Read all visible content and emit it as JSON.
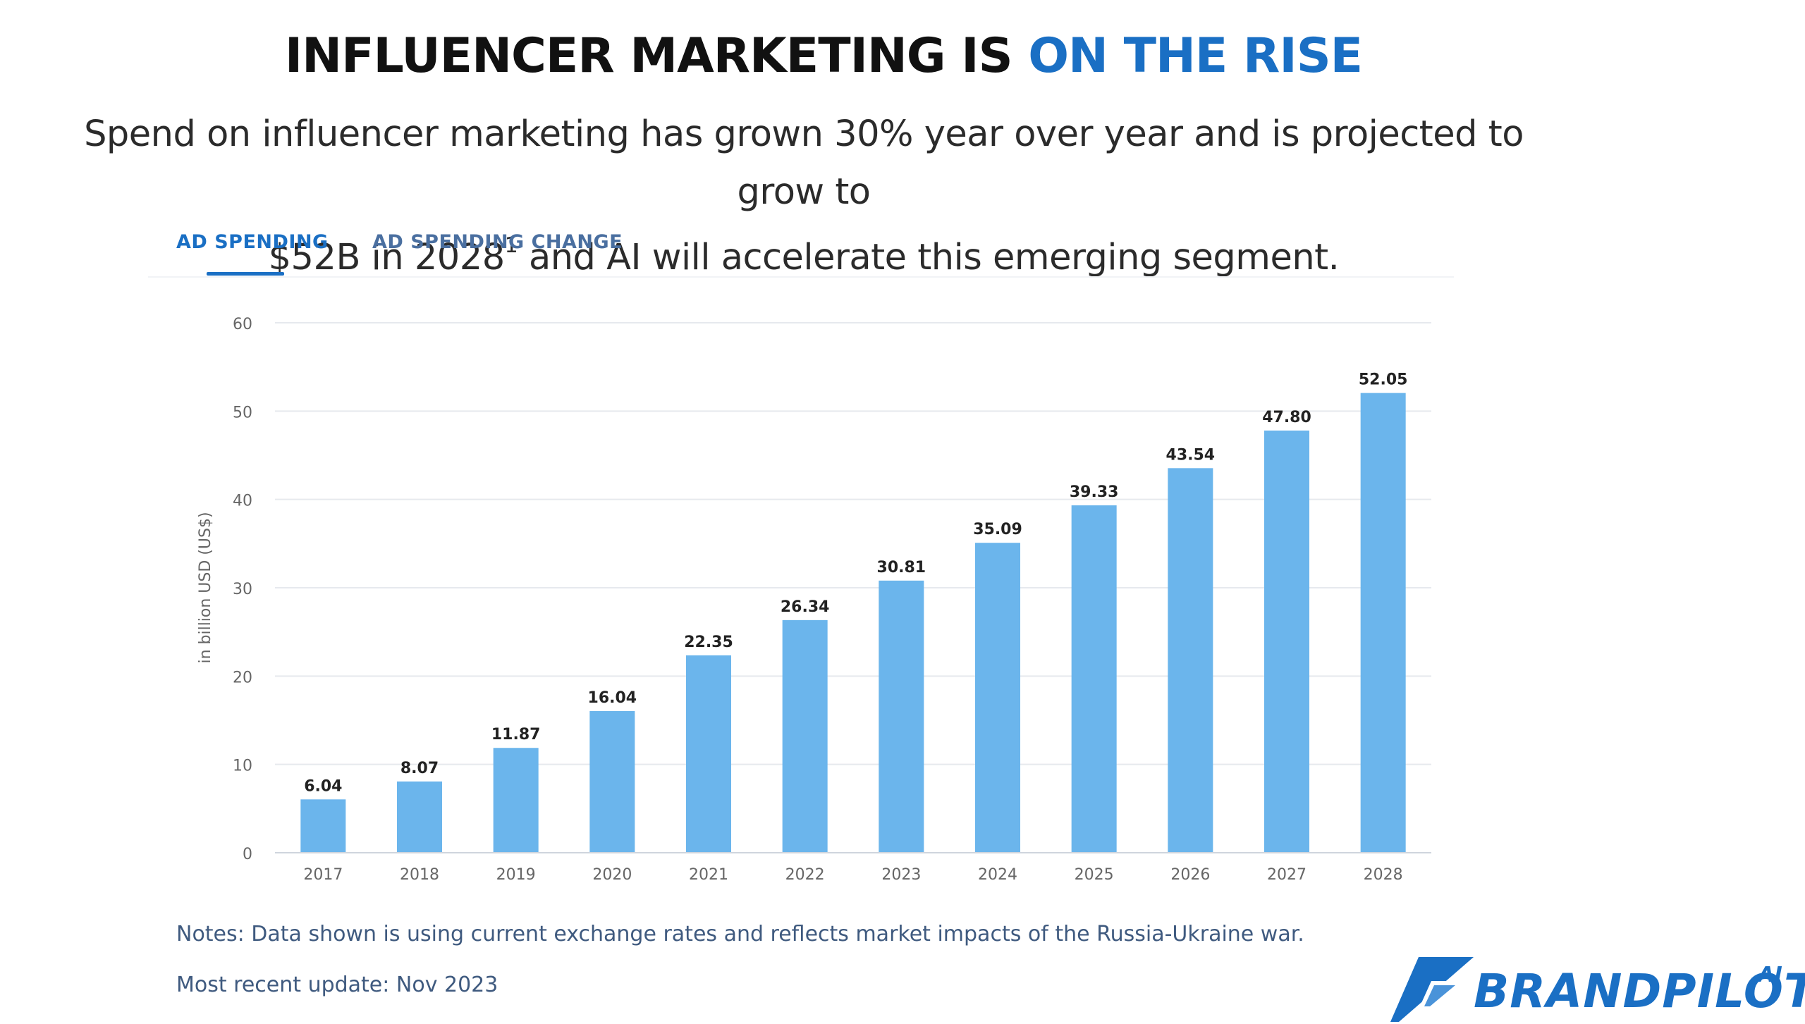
{
  "header": {
    "title_main": "INFLUENCER MARKETING IS ",
    "title_accent": "ON THE RISE",
    "subtitle_line1": "Spend on influencer marketing has grown 30% year over year and is projected to grow to",
    "subtitle_line2_a": "$52B in 2028",
    "subtitle_footnote": "1",
    "subtitle_line2_b": " and AI will accelerate this emerging segment."
  },
  "tabs": [
    {
      "label": "AD SPENDING",
      "active": true
    },
    {
      "label": "AD SPENDING CHANGE",
      "active": false
    }
  ],
  "chart_data": {
    "type": "bar",
    "categories": [
      "2017",
      "2018",
      "2019",
      "2020",
      "2021",
      "2022",
      "2023",
      "2024",
      "2025",
      "2026",
      "2027",
      "2028"
    ],
    "values": [
      6.04,
      8.07,
      11.87,
      16.04,
      22.35,
      26.34,
      30.81,
      35.09,
      39.33,
      43.54,
      47.8,
      52.05
    ],
    "value_labels": [
      "6.04",
      "8.07",
      "11.87",
      "16.04",
      "22.35",
      "26.34",
      "30.81",
      "35.09",
      "39.33",
      "43.54",
      "47.80",
      "52.05"
    ],
    "ylabel": "in billion USD (US$)",
    "ylim": [
      0,
      60
    ],
    "yticks": [
      0,
      10,
      20,
      30,
      40,
      50,
      60
    ],
    "grid": true,
    "bar_color": "#6bb5ec"
  },
  "footer": {
    "notes": "Notes: Data shown is using current exchange rates and reflects market impacts of the Russia-Ukraine war.",
    "update": "Most recent update: Nov 2023"
  },
  "brand": {
    "name": "BRANDPILOT",
    "suffix": ".AI",
    "color": "#1a6fc4"
  }
}
